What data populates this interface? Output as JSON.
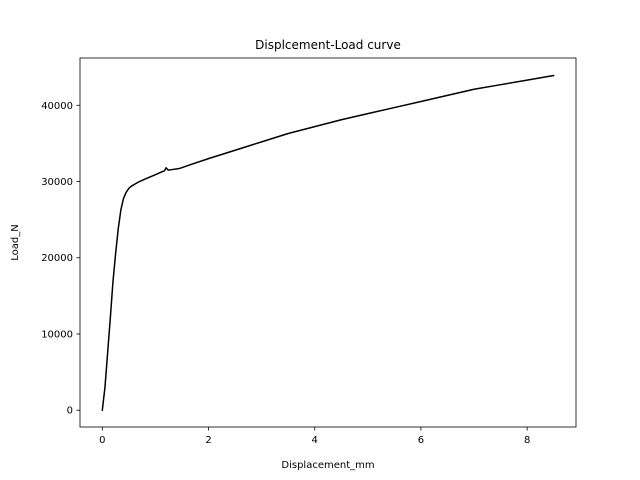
{
  "chart_data": {
    "type": "line",
    "title": "Displcement-Load curve",
    "xlabel": "Displacement_mm",
    "ylabel": "Load_N",
    "xlim": [
      -0.42,
      8.92
    ],
    "ylim": [
      -2200,
      46200
    ],
    "xticks": [
      0,
      2,
      4,
      6,
      8
    ],
    "yticks": [
      0,
      10000,
      20000,
      30000,
      40000
    ],
    "grid": false,
    "legend": "none",
    "series": [
      {
        "color": "#000000",
        "x": [
          0,
          0.05,
          0.1,
          0.15,
          0.2,
          0.25,
          0.3,
          0.35,
          0.4,
          0.45,
          0.5,
          0.55,
          0.6,
          0.65,
          0.7,
          0.8,
          0.9,
          1.0,
          1.1,
          1.17,
          1.2,
          1.24,
          1.3,
          1.45,
          1.7,
          2.0,
          2.5,
          3.0,
          3.5,
          4.0,
          4.5,
          5.0,
          5.5,
          6.0,
          6.5,
          7.0,
          7.5,
          8.0,
          8.5
        ],
        "y": [
          0,
          3000,
          7500,
          12000,
          16800,
          20500,
          23800,
          26300,
          27800,
          28600,
          29100,
          29400,
          29600,
          29800,
          30000,
          30300,
          30600,
          30900,
          31200,
          31400,
          31800,
          31500,
          31550,
          31700,
          32300,
          33000,
          34100,
          35200,
          36300,
          37200,
          38100,
          38900,
          39700,
          40500,
          41300,
          42100,
          42700,
          43300,
          43900
        ]
      }
    ]
  }
}
